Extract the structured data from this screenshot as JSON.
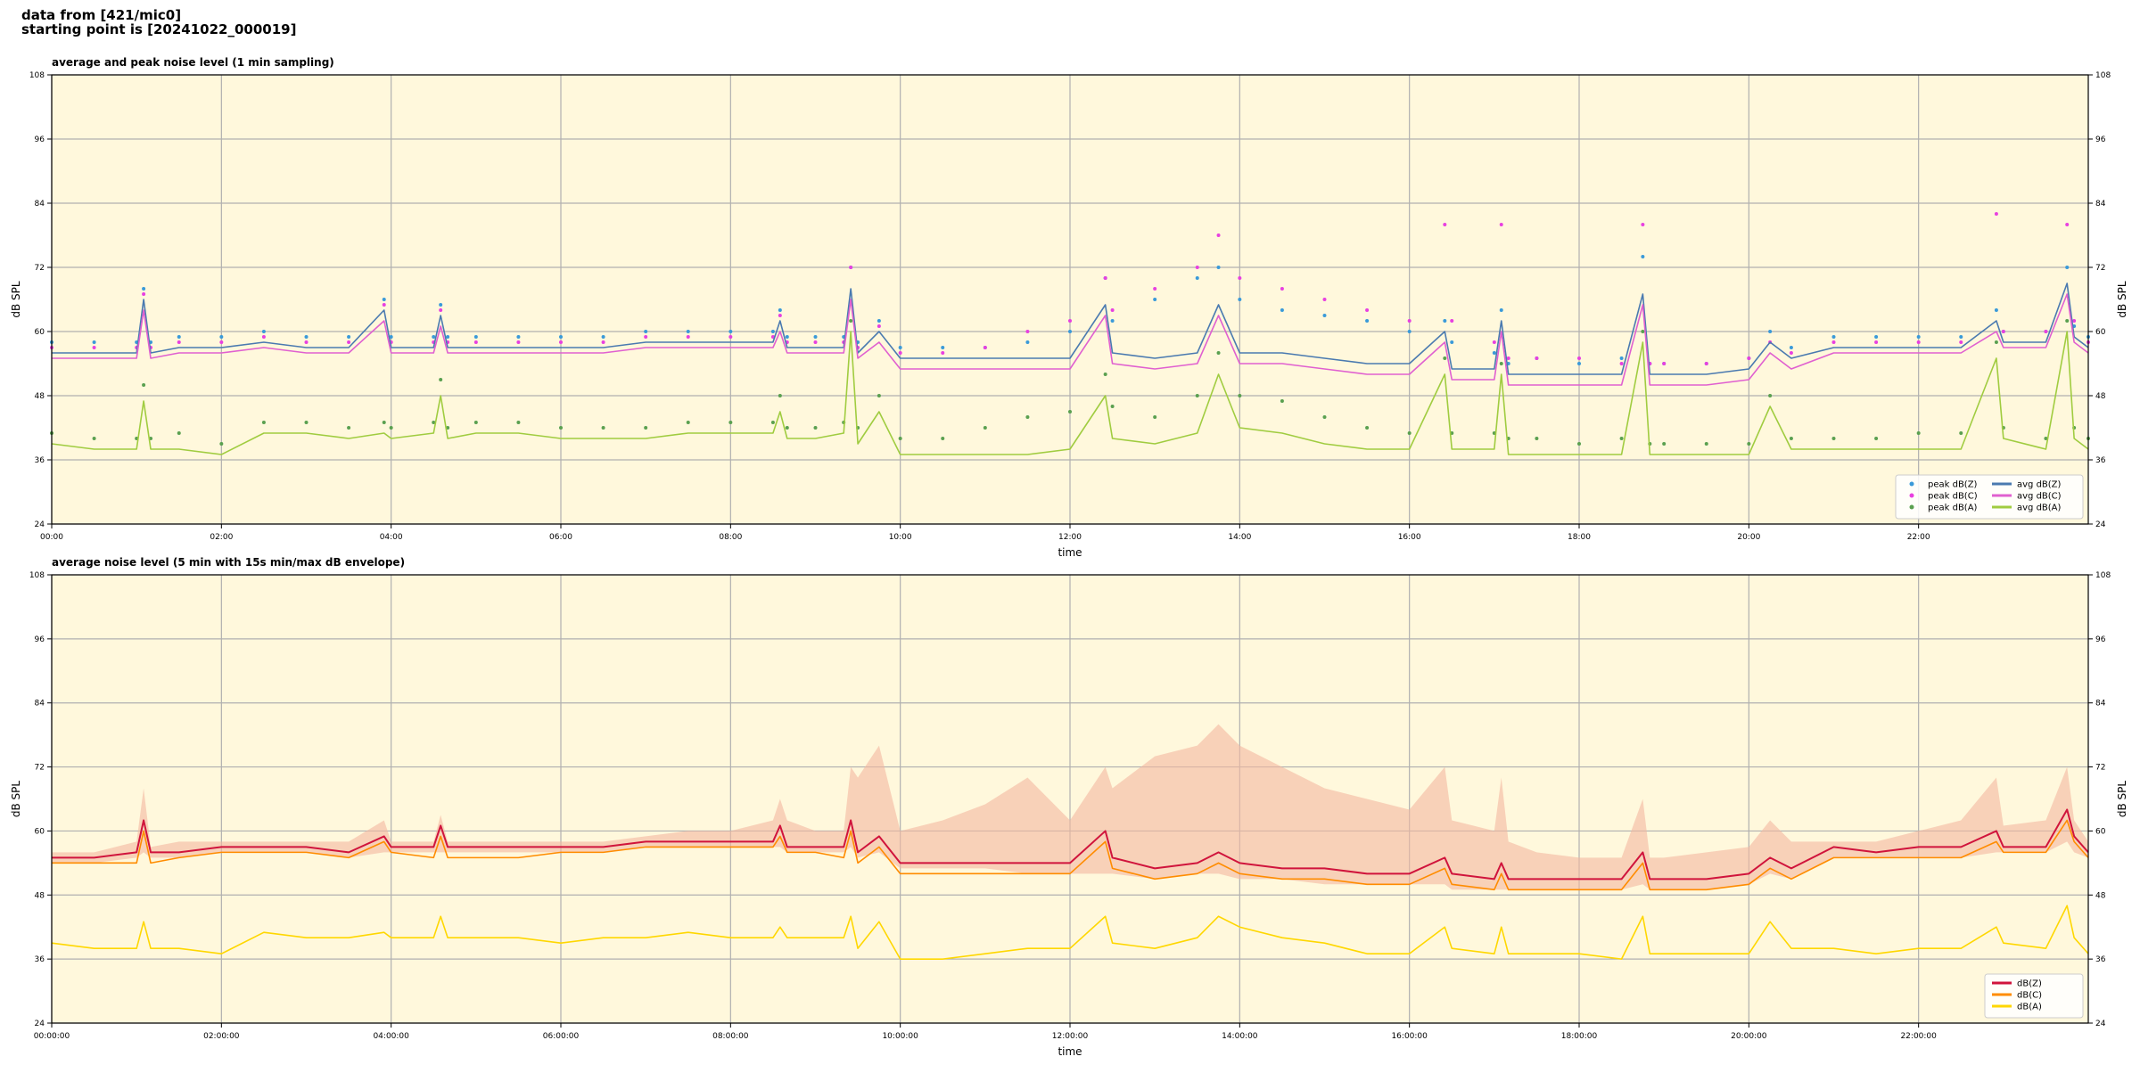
{
  "header": [
    "data from [421/mic0]",
    "starting point is [20241022_000019]"
  ],
  "chart_data": [
    {
      "type": "line",
      "title": "average and peak noise level (1 min sampling)",
      "xlabel": "time",
      "ylabel": "dB SPL",
      "xlim": [
        0,
        1440
      ],
      "ylim": [
        24,
        108
      ],
      "yticks": [
        24,
        36,
        48,
        60,
        72,
        84,
        96,
        108
      ],
      "xticks": [
        {
          "value": 0,
          "label": "00:00"
        },
        {
          "value": 120,
          "label": "02:00"
        },
        {
          "value": 240,
          "label": "04:00"
        },
        {
          "value": 360,
          "label": "06:00"
        },
        {
          "value": 480,
          "label": "08:00"
        },
        {
          "value": 600,
          "label": "10:00"
        },
        {
          "value": 720,
          "label": "12:00"
        },
        {
          "value": 840,
          "label": "14:00"
        },
        {
          "value": 960,
          "label": "16:00"
        },
        {
          "value": 1080,
          "label": "18:00"
        },
        {
          "value": 1200,
          "label": "20:00"
        },
        {
          "value": 1320,
          "label": "22:00"
        }
      ],
      "grid": true,
      "legend": "lower right",
      "legend_columns": 2,
      "background": "#fff8dc",
      "x": [
        0,
        30,
        60,
        65,
        70,
        90,
        120,
        150,
        180,
        210,
        235,
        240,
        270,
        275,
        280,
        300,
        330,
        360,
        390,
        420,
        450,
        480,
        510,
        515,
        520,
        540,
        560,
        565,
        570,
        585,
        600,
        630,
        660,
        690,
        720,
        745,
        750,
        780,
        810,
        825,
        840,
        870,
        900,
        930,
        960,
        985,
        990,
        1020,
        1025,
        1030,
        1050,
        1080,
        1110,
        1125,
        1130,
        1140,
        1170,
        1200,
        1215,
        1230,
        1260,
        1290,
        1320,
        1350,
        1375,
        1380,
        1410,
        1425,
        1430,
        1440
      ],
      "series": [
        {
          "name": "peak dB(Z)",
          "type": "scatter",
          "color": "#3a9ad9",
          "values": [
            58,
            58,
            58,
            68,
            58,
            59,
            59,
            60,
            59,
            59,
            66,
            59,
            59,
            65,
            59,
            59,
            59,
            59,
            59,
            60,
            60,
            60,
            60,
            64,
            59,
            59,
            59,
            72,
            58,
            62,
            57,
            57,
            57,
            58,
            60,
            70,
            62,
            66,
            70,
            72,
            66,
            64,
            63,
            62,
            60,
            62,
            58,
            56,
            64,
            54,
            55,
            54,
            55,
            74,
            54,
            54,
            54,
            55,
            60,
            57,
            59,
            59,
            59,
            59,
            64,
            60,
            60,
            72,
            61,
            59
          ]
        },
        {
          "name": "peak dB(C)",
          "type": "scatter",
          "color": "#e840e0",
          "values": [
            57,
            57,
            57,
            67,
            57,
            58,
            58,
            59,
            58,
            58,
            65,
            58,
            58,
            64,
            58,
            58,
            58,
            58,
            58,
            59,
            59,
            59,
            59,
            63,
            58,
            58,
            58,
            72,
            57,
            61,
            56,
            56,
            57,
            60,
            62,
            70,
            64,
            68,
            72,
            78,
            70,
            68,
            66,
            64,
            62,
            80,
            62,
            58,
            80,
            55,
            55,
            55,
            54,
            80,
            54,
            54,
            54,
            55,
            58,
            56,
            58,
            58,
            58,
            58,
            82,
            60,
            60,
            80,
            62,
            58
          ]
        },
        {
          "name": "peak dB(A)",
          "type": "scatter",
          "color": "#5aa050",
          "values": [
            41,
            40,
            40,
            50,
            40,
            41,
            39,
            43,
            43,
            42,
            43,
            42,
            43,
            51,
            42,
            43,
            43,
            42,
            42,
            42,
            43,
            43,
            43,
            48,
            42,
            42,
            43,
            62,
            42,
            48,
            40,
            40,
            42,
            44,
            45,
            52,
            46,
            44,
            48,
            56,
            48,
            47,
            44,
            42,
            41,
            55,
            41,
            41,
            54,
            40,
            40,
            39,
            40,
            60,
            39,
            39,
            39,
            39,
            48,
            40,
            40,
            40,
            41,
            41,
            58,
            42,
            40,
            62,
            42,
            40
          ]
        },
        {
          "name": "avg dB(Z)",
          "type": "line",
          "color": "#4a7ab0",
          "values": [
            56,
            56,
            56,
            66,
            56,
            57,
            57,
            58,
            57,
            57,
            64,
            57,
            57,
            63,
            57,
            57,
            57,
            57,
            57,
            58,
            58,
            58,
            58,
            62,
            57,
            57,
            57,
            68,
            56,
            60,
            55,
            55,
            55,
            55,
            55,
            65,
            56,
            55,
            56,
            65,
            56,
            56,
            55,
            54,
            54,
            60,
            53,
            53,
            62,
            52,
            52,
            52,
            52,
            67,
            52,
            52,
            52,
            53,
            58,
            55,
            57,
            57,
            57,
            57,
            62,
            58,
            58,
            69,
            59,
            57
          ]
        },
        {
          "name": "avg dB(C)",
          "type": "line",
          "color": "#e060d0",
          "values": [
            55,
            55,
            55,
            64,
            55,
            56,
            56,
            57,
            56,
            56,
            62,
            56,
            56,
            61,
            56,
            56,
            56,
            56,
            56,
            57,
            57,
            57,
            57,
            60,
            56,
            56,
            56,
            66,
            55,
            58,
            53,
            53,
            53,
            53,
            53,
            63,
            54,
            53,
            54,
            63,
            54,
            54,
            53,
            52,
            52,
            58,
            51,
            51,
            60,
            50,
            50,
            50,
            50,
            65,
            50,
            50,
            50,
            51,
            56,
            53,
            56,
            56,
            56,
            56,
            60,
            57,
            57,
            67,
            58,
            56
          ]
        },
        {
          "name": "avg dB(A)",
          "type": "line",
          "color": "#a0cc40",
          "values": [
            39,
            38,
            38,
            47,
            38,
            38,
            37,
            41,
            41,
            40,
            41,
            40,
            41,
            48,
            40,
            41,
            41,
            40,
            40,
            40,
            41,
            41,
            41,
            45,
            40,
            40,
            41,
            60,
            39,
            45,
            37,
            37,
            37,
            37,
            38,
            48,
            40,
            39,
            41,
            52,
            42,
            41,
            39,
            38,
            38,
            52,
            38,
            38,
            52,
            37,
            37,
            37,
            37,
            58,
            37,
            37,
            37,
            37,
            46,
            38,
            38,
            38,
            38,
            38,
            55,
            40,
            38,
            60,
            40,
            38
          ]
        }
      ]
    },
    {
      "type": "line",
      "title": "average noise level (5 min with 15s min/max dB envelope)",
      "xlabel": "time",
      "ylabel": "dB SPL",
      "xlim": [
        0,
        1440
      ],
      "ylim": [
        24,
        108
      ],
      "yticks": [
        24,
        36,
        48,
        60,
        72,
        84,
        96,
        108
      ],
      "xticks": [
        {
          "value": 0,
          "label": "00:00:00"
        },
        {
          "value": 120,
          "label": "02:00:00"
        },
        {
          "value": 240,
          "label": "04:00:00"
        },
        {
          "value": 360,
          "label": "06:00:00"
        },
        {
          "value": 480,
          "label": "08:00:00"
        },
        {
          "value": 600,
          "label": "10:00:00"
        },
        {
          "value": 720,
          "label": "12:00:00"
        },
        {
          "value": 840,
          "label": "14:00:00"
        },
        {
          "value": 960,
          "label": "16:00:00"
        },
        {
          "value": 1080,
          "label": "18:00:00"
        },
        {
          "value": 1200,
          "label": "20:00:00"
        },
        {
          "value": 1320,
          "label": "22:00:00"
        }
      ],
      "grid": true,
      "legend": "lower right",
      "legend_columns": 1,
      "background": "#fff8dc",
      "x": [
        0,
        30,
        60,
        65,
        70,
        90,
        120,
        150,
        180,
        210,
        235,
        240,
        270,
        275,
        280,
        300,
        330,
        360,
        390,
        420,
        450,
        480,
        510,
        515,
        520,
        540,
        560,
        565,
        570,
        585,
        600,
        630,
        660,
        690,
        720,
        745,
        750,
        780,
        810,
        825,
        840,
        870,
        900,
        930,
        960,
        985,
        990,
        1020,
        1025,
        1030,
        1050,
        1080,
        1110,
        1125,
        1130,
        1140,
        1170,
        1200,
        1215,
        1230,
        1260,
        1290,
        1320,
        1350,
        1375,
        1380,
        1410,
        1425,
        1430,
        1440
      ],
      "envelope": {
        "color": "#f4b8a0",
        "min": [
          54,
          54,
          55,
          56,
          55,
          55,
          56,
          56,
          56,
          55,
          56,
          56,
          56,
          56,
          56,
          56,
          56,
          56,
          56,
          57,
          57,
          57,
          57,
          57,
          56,
          56,
          56,
          57,
          55,
          56,
          53,
          53,
          53,
          52,
          52,
          52,
          52,
          51,
          52,
          52,
          51,
          51,
          50,
          50,
          50,
          50,
          49,
          49,
          49,
          49,
          49,
          49,
          49,
          50,
          49,
          49,
          49,
          50,
          52,
          51,
          55,
          55,
          55,
          55,
          56,
          56,
          56,
          58,
          56,
          55
        ],
        "max": [
          56,
          56,
          58,
          68,
          57,
          58,
          58,
          58,
          58,
          58,
          62,
          58,
          58,
          63,
          58,
          58,
          58,
          58,
          58,
          59,
          60,
          60,
          62,
          66,
          62,
          60,
          60,
          72,
          70,
          76,
          60,
          62,
          65,
          70,
          62,
          72,
          68,
          74,
          76,
          80,
          76,
          72,
          68,
          66,
          64,
          72,
          62,
          60,
          70,
          58,
          56,
          55,
          55,
          66,
          55,
          55,
          56,
          57,
          62,
          58,
          58,
          58,
          60,
          62,
          70,
          61,
          62,
          72,
          62,
          58
        ]
      },
      "series": [
        {
          "name": "dB(Z)",
          "type": "line",
          "color": "#d0143c",
          "values": [
            55,
            55,
            56,
            62,
            56,
            56,
            57,
            57,
            57,
            56,
            59,
            57,
            57,
            61,
            57,
            57,
            57,
            57,
            57,
            58,
            58,
            58,
            58,
            61,
            57,
            57,
            57,
            62,
            56,
            59,
            54,
            54,
            54,
            54,
            54,
            60,
            55,
            53,
            54,
            56,
            54,
            53,
            53,
            52,
            52,
            55,
            52,
            51,
            54,
            51,
            51,
            51,
            51,
            56,
            51,
            51,
            51,
            52,
            55,
            53,
            57,
            56,
            57,
            57,
            60,
            57,
            57,
            64,
            59,
            56
          ]
        },
        {
          "name": "dB(C)",
          "type": "line",
          "color": "#ff8c00",
          "values": [
            54,
            54,
            54,
            60,
            54,
            55,
            56,
            56,
            56,
            55,
            58,
            56,
            55,
            59,
            55,
            55,
            55,
            56,
            56,
            57,
            57,
            57,
            57,
            59,
            56,
            56,
            55,
            60,
            54,
            57,
            52,
            52,
            52,
            52,
            52,
            58,
            53,
            51,
            52,
            54,
            52,
            51,
            51,
            50,
            50,
            53,
            50,
            49,
            52,
            49,
            49,
            49,
            49,
            54,
            49,
            49,
            49,
            50,
            53,
            51,
            55,
            55,
            55,
            55,
            58,
            56,
            56,
            62,
            58,
            55
          ]
        },
        {
          "name": "dB(A)",
          "type": "line",
          "color": "#ffd700",
          "values": [
            39,
            38,
            38,
            43,
            38,
            38,
            37,
            41,
            40,
            40,
            41,
            40,
            40,
            44,
            40,
            40,
            40,
            39,
            40,
            40,
            41,
            40,
            40,
            42,
            40,
            40,
            40,
            44,
            38,
            43,
            36,
            36,
            37,
            38,
            38,
            44,
            39,
            38,
            40,
            44,
            42,
            40,
            39,
            37,
            37,
            42,
            38,
            37,
            42,
            37,
            37,
            37,
            36,
            44,
            37,
            37,
            37,
            37,
            43,
            38,
            38,
            37,
            38,
            38,
            42,
            39,
            38,
            46,
            40,
            37
          ]
        }
      ]
    }
  ]
}
